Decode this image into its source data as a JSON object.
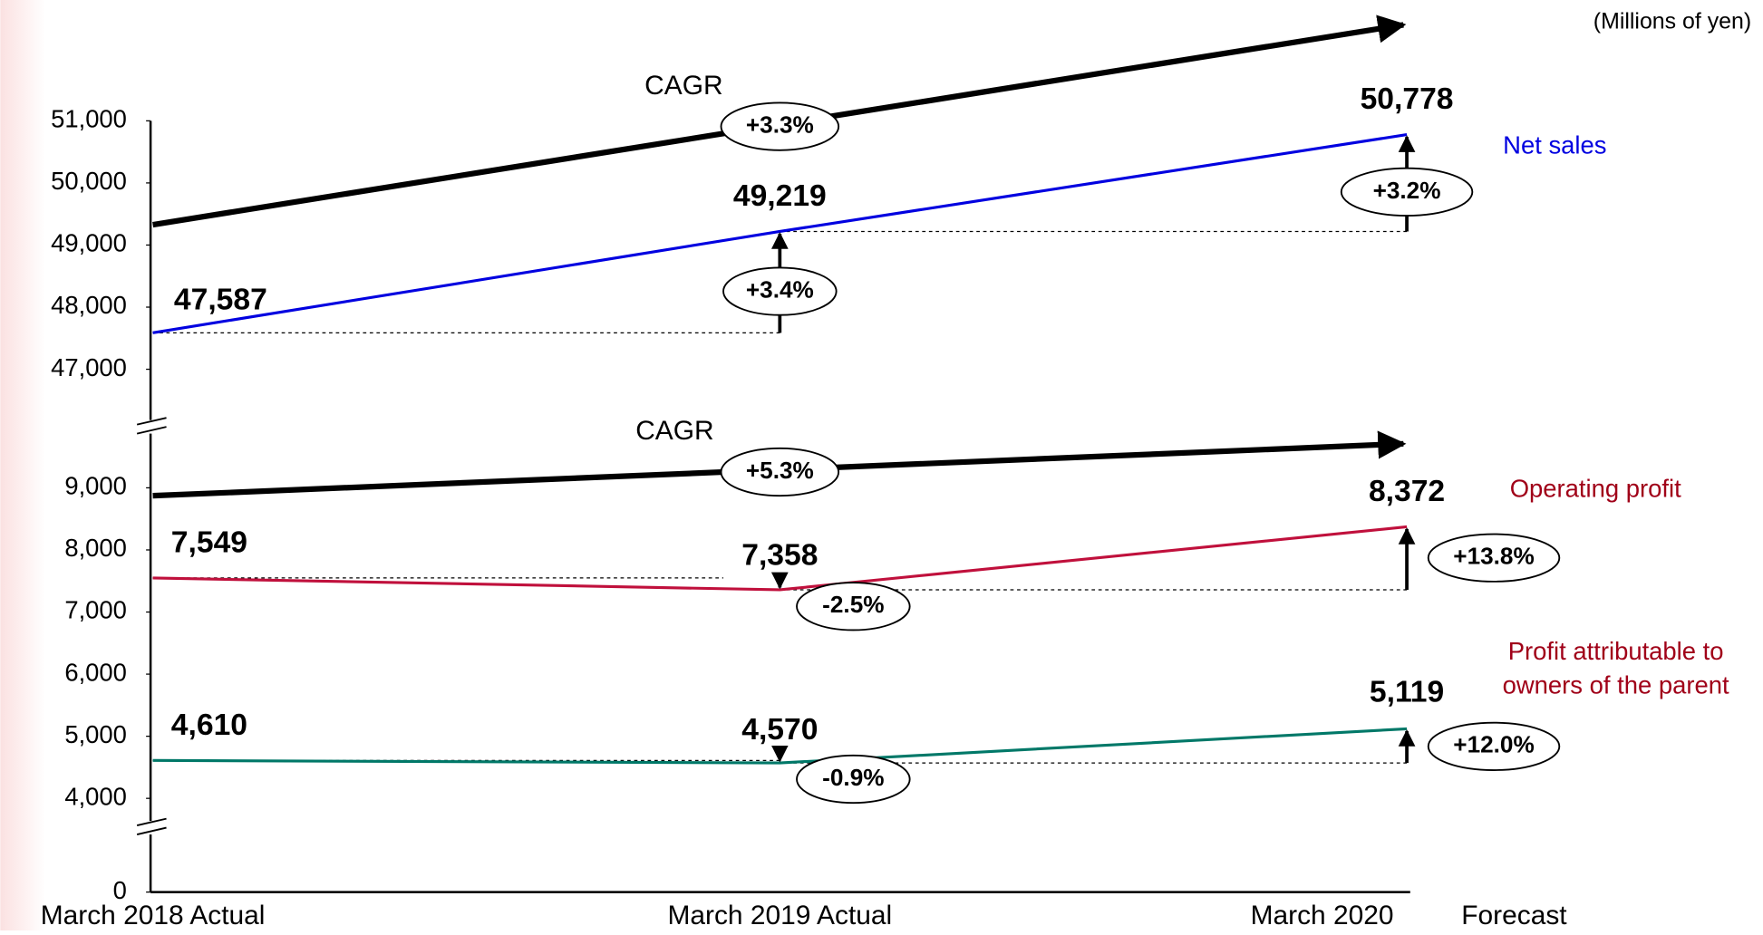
{
  "chart_data": {
    "type": "line",
    "unit_label": "(Millions of yen)",
    "categories": [
      "March 2018 Actual",
      "March 2019 Actual",
      "March 2020"
    ],
    "forecast_label": "Forecast",
    "ysegments": [
      {
        "ylim": [
          46000,
          51000
        ],
        "yticks": [
          {
            "value": 47000,
            "label": "47,000"
          },
          {
            "value": 48000,
            "label": "48,000"
          },
          {
            "value": 49000,
            "label": "49,000"
          },
          {
            "value": 50000,
            "label": "50,000"
          },
          {
            "value": 51000,
            "label": "51,000"
          }
        ]
      },
      {
        "ylim": [
          3500,
          10000
        ],
        "yticks": [
          {
            "value": 4000,
            "label": "4,000"
          },
          {
            "value": 5000,
            "label": "5,000"
          },
          {
            "value": 6000,
            "label": "6,000"
          },
          {
            "value": 7000,
            "label": "7,000"
          },
          {
            "value": 8000,
            "label": "8,000"
          },
          {
            "value": 9000,
            "label": "9,000"
          }
        ]
      },
      {
        "ylim": [
          0,
          1000
        ],
        "yticks": [
          0
        ]
      }
    ],
    "cagr_label": "CAGR",
    "cagr": [
      3.3,
      5.3
    ],
    "cagr_labels": [
      "+3.3%",
      "+5.3%"
    ],
    "series": [
      {
        "name": "Net sales",
        "color": "#0000e0",
        "label_color": "#0000e0",
        "segment": 0,
        "values": [
          47587,
          49219,
          50778
        ],
        "value_labels": [
          "47,587",
          "49,219",
          "50,778"
        ],
        "changes": [
          3.4,
          3.2
        ],
        "change_labels": [
          "+3.4%",
          "+3.2%"
        ]
      },
      {
        "name": "Operating profit",
        "color": "#c0103c",
        "label_color": "#a00018",
        "segment": 1,
        "values": [
          7549,
          7358,
          8372
        ],
        "value_labels": [
          "7,549",
          "7,358",
          "8,372"
        ],
        "changes": [
          -2.5,
          13.8
        ],
        "change_labels": [
          "-2.5%",
          "+13.8%"
        ]
      },
      {
        "name": "Profit attributable to owners of the parent",
        "color": "#007868",
        "label_color": "#a00018",
        "segment": 1,
        "values": [
          4610,
          4570,
          5119
        ],
        "value_labels": [
          "4,610",
          "4,570",
          "5,119"
        ],
        "changes": [
          -0.9,
          12.0
        ],
        "change_labels": [
          "-0.9%",
          "+12.0%"
        ]
      }
    ]
  }
}
